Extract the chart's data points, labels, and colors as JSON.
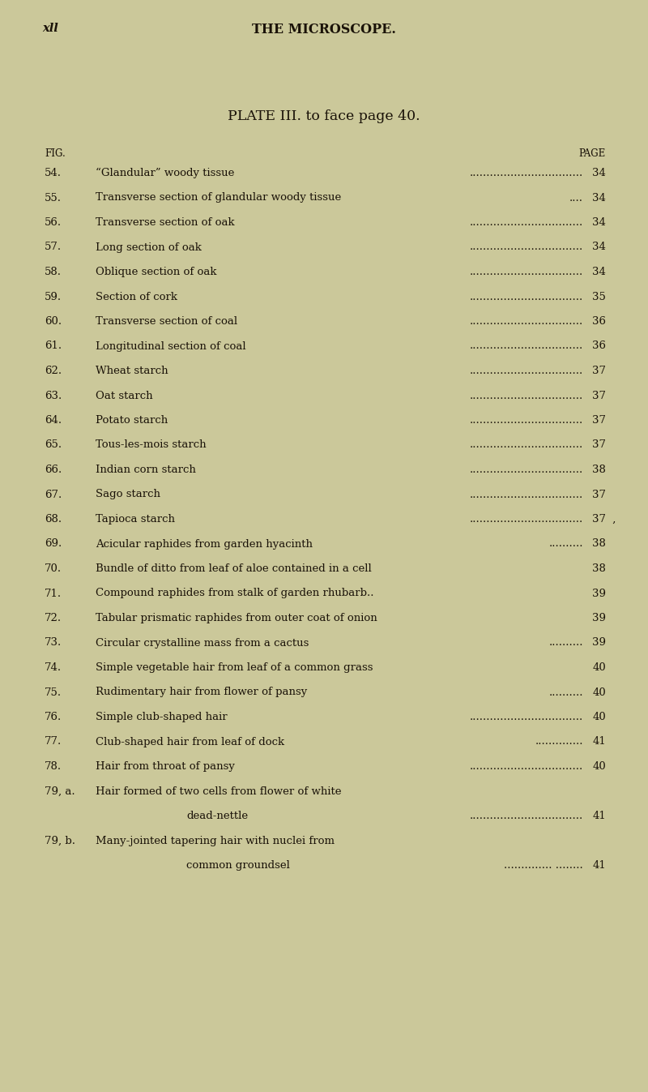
{
  "background_color": "#cbc89a",
  "text_color": "#1a1208",
  "header_left": "xll",
  "header_center": "THE MICROSCOPE.",
  "plate_title": "PLATE III. to face page 40.",
  "col_fig": "FIG.",
  "col_page": "PAGE",
  "entries": [
    {
      "num": "54.",
      "text": "“Glandular” woody tissue",
      "dots": ".................................",
      "page": "34",
      "indent": false,
      "extra": ""
    },
    {
      "num": "55.",
      "text": "Transverse section of glandular woody tissue",
      "dots": "....",
      "page": "34",
      "indent": false,
      "extra": ""
    },
    {
      "num": "56.",
      "text": "Transverse section of oak",
      "dots": ".................................",
      "page": "34",
      "indent": false,
      "extra": ""
    },
    {
      "num": "57.",
      "text": "Long section of oak",
      "dots": ".................................",
      "page": "34",
      "indent": false,
      "extra": ""
    },
    {
      "num": "58.",
      "text": "Oblique section of oak",
      "dots": ".................................",
      "page": "34",
      "indent": false,
      "extra": ""
    },
    {
      "num": "59.",
      "text": "Section of cork",
      "dots": ".................................",
      "page": "35",
      "indent": false,
      "extra": ""
    },
    {
      "num": "60.",
      "text": "Transverse section of coal",
      "dots": ".................................",
      "page": "36",
      "indent": false,
      "extra": ""
    },
    {
      "num": "61.",
      "text": "Longitudinal section of coal",
      "dots": ".................................",
      "page": "36",
      "indent": false,
      "extra": ""
    },
    {
      "num": "62.",
      "text": "Wheat starch",
      "dots": ".................................",
      "page": "37",
      "indent": false,
      "extra": ""
    },
    {
      "num": "63.",
      "text": "Oat starch",
      "dots": ".................................",
      "page": "37",
      "indent": false,
      "extra": ""
    },
    {
      "num": "64.",
      "text": "Potato starch",
      "dots": ".................................",
      "page": "37",
      "indent": false,
      "extra": ""
    },
    {
      "num": "65.",
      "text": "Tous-les-mois starch",
      "dots": ".................................",
      "page": "37",
      "indent": false,
      "extra": ""
    },
    {
      "num": "66.",
      "text": "Indian corn starch",
      "dots": ".................................",
      "page": "38",
      "indent": false,
      "extra": ""
    },
    {
      "num": "67.",
      "text": "Sago starch",
      "dots": ".................................",
      "page": "37",
      "indent": false,
      "extra": ""
    },
    {
      "num": "68.",
      "text": "Tapioca starch",
      "dots": ".................................",
      "page": "37",
      "indent": false,
      "extra": " ,"
    },
    {
      "num": "69.",
      "text": "Acicular raphides from garden hyacinth",
      "dots": "..........",
      "page": "38",
      "indent": false,
      "extra": ""
    },
    {
      "num": "70.",
      "text": "Bundle of ditto from leaf of aloe contained in a cell",
      "dots": "",
      "page": "38",
      "indent": false,
      "extra": ""
    },
    {
      "num": "71.",
      "text": "Compound raphides from stalk of garden rhubarb..",
      "dots": "",
      "page": "39",
      "indent": false,
      "extra": ""
    },
    {
      "num": "72.",
      "text": "Tabular prismatic raphides from outer coat of onion",
      "dots": "",
      "page": "39",
      "indent": false,
      "extra": ""
    },
    {
      "num": "73.",
      "text": "Circular crystalline mass from a cactus",
      "dots": "..........",
      "page": "39",
      "indent": false,
      "extra": ""
    },
    {
      "num": "74.",
      "text": "Simple vegetable hair from leaf of a common grass",
      "dots": "",
      "page": "40",
      "indent": false,
      "extra": ""
    },
    {
      "num": "75.",
      "text": "Rudimentary hair from flower of pansy",
      "dots": "..........",
      "page": "40",
      "indent": false,
      "extra": ""
    },
    {
      "num": "76.",
      "text": "Simple club-shaped hair",
      "dots": ".................................",
      "page": "40",
      "indent": false,
      "extra": ""
    },
    {
      "num": "77.",
      "text": "Club-shaped hair from leaf of dock",
      "dots": "..............",
      "page": "41",
      "indent": false,
      "extra": ""
    },
    {
      "num": "78.",
      "text": "Hair from throat of pansy",
      "dots": ".................................",
      "page": "40",
      "indent": false,
      "extra": ""
    },
    {
      "num": "79, a.",
      "text": "Hair formed of two cells from flower of white",
      "dots": "",
      "page": "",
      "indent": false,
      "extra": ""
    },
    {
      "num": "",
      "text": "dead-nettle",
      "dots": ".................................",
      "page": "41",
      "indent": true,
      "extra": ""
    },
    {
      "num": "79, b.",
      "text": "Many-jointed tapering hair with nuclei from",
      "dots": "",
      "page": "",
      "indent": false,
      "extra": ""
    },
    {
      "num": "",
      "text": "common groundsel",
      "dots": ".............. ........",
      "page": "41",
      "indent": true,
      "extra": ""
    }
  ],
  "font_size_header": 10.5,
  "font_size_title": 12.5,
  "font_size_col": 8.5,
  "font_size_entry": 9.5
}
